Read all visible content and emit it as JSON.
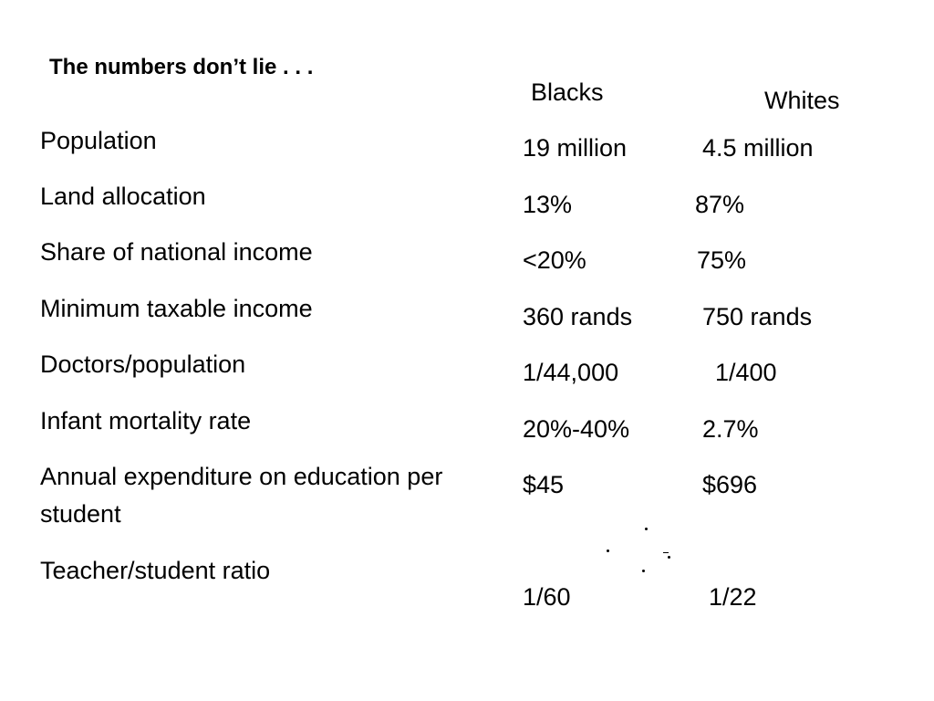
{
  "slide": {
    "title": "The numbers don’t lie . . .",
    "column_headers": {
      "blacks": "Blacks",
      "whites": "Whites"
    },
    "rows": [
      {
        "label": "Population",
        "blacks": "19 million",
        "whites": "4.5 million"
      },
      {
        "label": "Land allocation",
        "blacks": "13%",
        "whites": "87%"
      },
      {
        "label": "Share of national income",
        "blacks": "<20%",
        "whites": "75%"
      },
      {
        "label": "Minimum taxable income",
        "blacks": "360 rands",
        "whites": "750 rands"
      },
      {
        "label": "Doctors/population",
        "blacks": "1/44,000",
        "whites": "1/400"
      },
      {
        "label": "Infant mortality rate",
        "blacks": "20%-40%",
        "whites": "2.7%"
      },
      {
        "label": "Annual expenditure on education per student",
        "blacks": "$45",
        "whites": "$696"
      },
      {
        "label": "Teacher/student ratio",
        "blacks": "1/60",
        "whites": "1/22"
      }
    ]
  }
}
